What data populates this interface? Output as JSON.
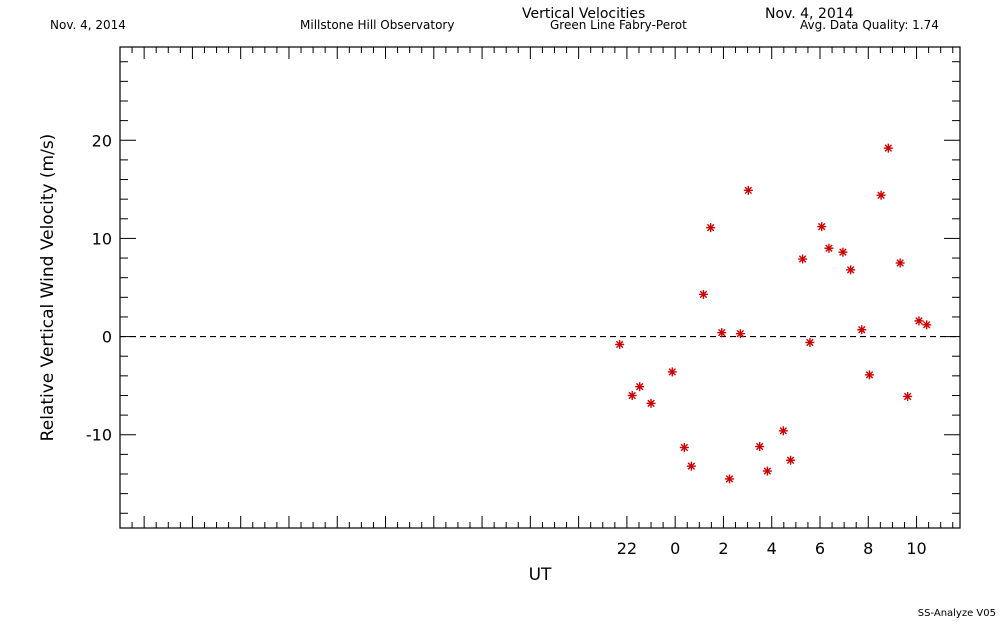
{
  "header": {
    "date_left": "Nov. 4, 2014",
    "observatory": "Millstone Hill Observatory",
    "title": "Vertical Velocities",
    "instrument": "Green Line Fabry-Perot",
    "date_right": "Nov. 4, 2014",
    "quality": "Avg. Data Quality: 1.74"
  },
  "footer": {
    "software": "SS-Analyze V05"
  },
  "chart_data": {
    "type": "scatter",
    "title": "Vertical Velocities",
    "xlabel": "UT",
    "ylabel": "Relative Vertical Wind Velocity (m/s)",
    "xlim": [
      -23,
      11.8
    ],
    "ylim": [
      -19.5,
      29.5
    ],
    "xticks": [
      22,
      0,
      2,
      4,
      6,
      8,
      10
    ],
    "yticks": [
      -10,
      0,
      10,
      20
    ],
    "marker_color": "#cc0000",
    "zero_line": "dashed",
    "grid": false,
    "series": [
      {
        "x": [
          21.7,
          22.22,
          22.53,
          23.0,
          23.88,
          0.38,
          0.67,
          1.17,
          1.47,
          1.93,
          2.25,
          2.7,
          3.03,
          3.5,
          3.82,
          4.48,
          4.78,
          5.28,
          5.58,
          6.07,
          6.37,
          6.95,
          7.27,
          7.73,
          8.05,
          8.53,
          8.83,
          9.32,
          9.63,
          10.1,
          10.42
        ],
        "y": [
          -0.8,
          -6.0,
          -5.1,
          -6.8,
          -3.6,
          -11.3,
          -13.2,
          4.3,
          11.1,
          0.4,
          -14.5,
          0.3,
          14.9,
          -11.2,
          -13.7,
          -9.6,
          -12.6,
          7.9,
          -0.6,
          11.2,
          9.0,
          8.6,
          6.8,
          0.7,
          -3.9,
          14.4,
          19.2,
          7.5,
          -6.1,
          1.6,
          1.2
        ]
      }
    ]
  }
}
